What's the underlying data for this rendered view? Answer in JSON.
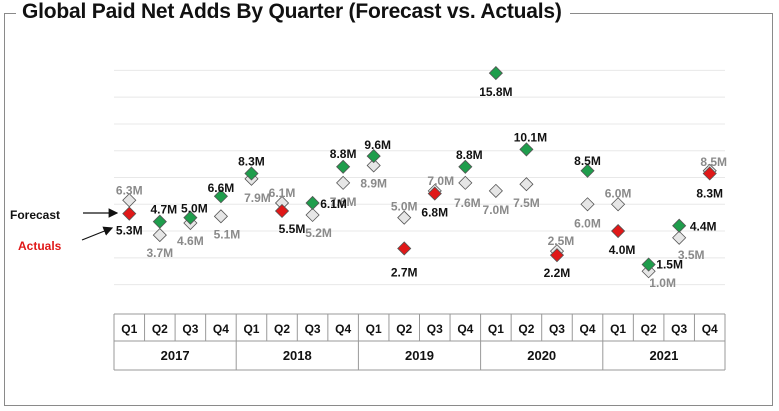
{
  "chart_data": {
    "type": "scatter",
    "title": "Global Paid Net Adds By Quarter (Forecast vs. Actuals)",
    "years": [
      "2017",
      "2018",
      "2019",
      "2020",
      "2021"
    ],
    "quarters": [
      "Q1",
      "Q2",
      "Q3",
      "Q4"
    ],
    "ylim": [
      -1,
      17
    ],
    "series": [
      {
        "name": "Forecast",
        "values": [
          6.3,
          3.7,
          4.6,
          5.1,
          7.9,
          6.1,
          5.2,
          7.6,
          8.9,
          5.0,
          7.0,
          7.6,
          7.0,
          7.5,
          2.5,
          6.0,
          6.0,
          1.0,
          3.5,
          8.5
        ],
        "labels": [
          "6.3M",
          "3.7M",
          "4.6M",
          "5.1M",
          "7.9M",
          "6.1M",
          "5.2M",
          "7.6M",
          "8.9M",
          "5.0M",
          "7.0M",
          "7.6M",
          "7.0M",
          "7.5M",
          "2.5M",
          "6.0M",
          "6.0M",
          "1.0M",
          "3.5M",
          "8.5M"
        ]
      },
      {
        "name": "Actuals",
        "values": [
          5.3,
          4.7,
          5.0,
          6.6,
          8.3,
          5.5,
          6.1,
          8.8,
          9.6,
          2.7,
          6.8,
          8.8,
          15.8,
          10.1,
          2.2,
          8.5,
          4.0,
          1.5,
          4.4,
          8.3
        ],
        "labels": [
          "5.3M",
          "4.7M",
          "5.0M",
          "6.6M",
          "8.3M",
          "5.5M",
          "6.1M",
          "8.8M",
          "9.6M",
          "2.7M",
          "6.8M",
          "8.8M",
          "15.8M",
          "10.1M",
          "2.2M",
          "8.5M",
          "4.0M",
          "1.5M",
          "4.4M",
          "8.3M"
        ],
        "status": [
          "miss",
          "beat",
          "beat",
          "beat",
          "beat",
          "miss",
          "beat",
          "beat",
          "beat",
          "miss",
          "miss",
          "beat",
          "beat",
          "beat",
          "miss",
          "beat",
          "miss",
          "beat",
          "beat",
          "miss"
        ]
      }
    ],
    "legend": {
      "forecast": "Forecast",
      "actuals": "Actuals"
    },
    "grid": true
  },
  "colors": {
    "beat": "#1f9d4c",
    "miss": "#e01818",
    "forecast_fill": "#e6e6e6",
    "forecast_label": "#8a8a8a",
    "actual_label": "#111111",
    "actuals_legend": "#e01818",
    "grid": "#e8e8e8"
  }
}
